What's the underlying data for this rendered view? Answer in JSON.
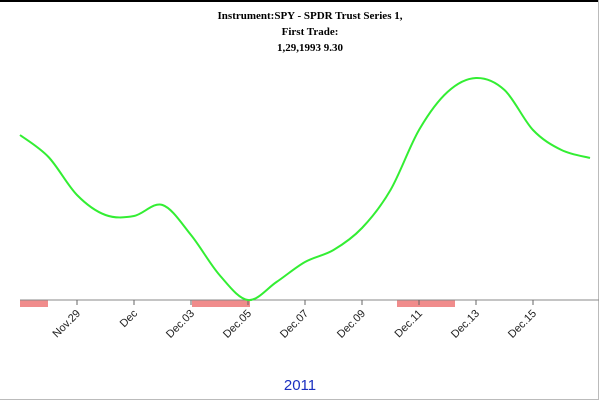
{
  "chart_data": {
    "type": "line",
    "title": [
      "Instrument:SPY - SPDR Trust Series 1,",
      "First Trade:",
      "1,29,1993 9.30"
    ],
    "x_label": "2011",
    "categories": [
      null,
      null,
      "Nov.29",
      null,
      "Dec",
      null,
      "Dec.03",
      null,
      "Dec.05",
      null,
      "Dec.07",
      null,
      "Dec.09",
      null,
      "Dec.11",
      null,
      "Dec.13",
      null,
      "Dec.15",
      null,
      null
    ],
    "series": [
      {
        "color": "#33ee33",
        "values": [
          165,
          143,
          105,
          85,
          84,
          95,
          65,
          25,
          0,
          18,
          38,
          50,
          72,
          110,
          170,
          208,
          222,
          210,
          170,
          150,
          142
        ]
      }
    ],
    "ylim": [
      0,
      230
    ]
  }
}
